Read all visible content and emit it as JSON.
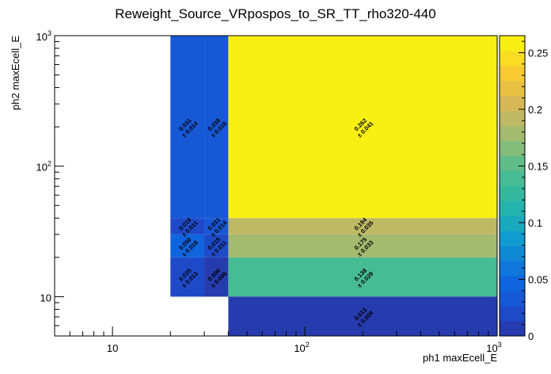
{
  "chart_data": {
    "type": "heatmap",
    "title": "Reweight_Source_VRpospos_to_SR_TT_rho320-440",
    "xlabel": "ph1 maxEcell_E",
    "ylabel": "ph2 maxEcell_E",
    "x_scale": "log",
    "y_scale": "log",
    "xlim": [
      5,
      1000
    ],
    "ylim": [
      5,
      1000
    ],
    "x_ticks": [
      {
        "value": 10,
        "base": "10",
        "exp": ""
      },
      {
        "value": 100,
        "base": "10",
        "exp": "2"
      },
      {
        "value": 1000,
        "base": "10",
        "exp": "3"
      }
    ],
    "y_ticks": [
      {
        "value": 10,
        "base": "10",
        "exp": ""
      },
      {
        "value": 100,
        "base": "10",
        "exp": "2"
      },
      {
        "value": 1000,
        "base": "10",
        "exp": "3"
      }
    ],
    "colorbar": {
      "min": 0,
      "max": 0.265,
      "ticks": [
        "0",
        "0.05",
        "0.1",
        "0.15",
        "0.2",
        "0.25"
      ],
      "tick_values": [
        0,
        0.05,
        0.1,
        0.15,
        0.2,
        0.25
      ]
    },
    "cells": [
      {
        "x0": 20,
        "x1": 30,
        "y0": 40,
        "y1": 1000,
        "value": 0.031,
        "label": "0.031",
        "err": "± 0.014"
      },
      {
        "x0": 30,
        "x1": 40,
        "y0": 40,
        "y1": 1000,
        "value": 0.038,
        "label": "0.038",
        "err": "± 0.015"
      },
      {
        "x0": 40,
        "x1": 1000,
        "y0": 40,
        "y1": 1000,
        "value": 0.262,
        "label": "0.262",
        "err": "± 0.041"
      },
      {
        "x0": 20,
        "x1": 30,
        "y0": 30,
        "y1": 40,
        "value": 0.019,
        "label": "0.019",
        "err": "± 0.011"
      },
      {
        "x0": 30,
        "x1": 40,
        "y0": 30,
        "y1": 40,
        "value": 0.031,
        "label": "0.031",
        "err": "± 0.014"
      },
      {
        "x0": 40,
        "x1": 1000,
        "y0": 30,
        "y1": 40,
        "value": 0.194,
        "label": "0.194",
        "err": "± 0.035"
      },
      {
        "x0": 20,
        "x1": 30,
        "y0": 20,
        "y1": 30,
        "value": 0.05,
        "label": "0.050",
        "err": "± 0.018"
      },
      {
        "x0": 30,
        "x1": 40,
        "y0": 20,
        "y1": 30,
        "value": 0.019,
        "label": "0.019",
        "err": "± 0.011"
      },
      {
        "x0": 40,
        "x1": 1000,
        "y0": 20,
        "y1": 30,
        "value": 0.175,
        "label": "0.175",
        "err": "± 0.033"
      },
      {
        "x0": 20,
        "x1": 30,
        "y0": 10,
        "y1": 20,
        "value": 0.025,
        "label": "0.025",
        "err": "± 0.013"
      },
      {
        "x0": 30,
        "x1": 40,
        "y0": 10,
        "y1": 20,
        "value": 0.006,
        "label": "0.006",
        "err": "± 0.006"
      },
      {
        "x0": 40,
        "x1": 1000,
        "y0": 10,
        "y1": 20,
        "value": 0.138,
        "label": "0.138",
        "err": "± 0.029"
      },
      {
        "x0": 40,
        "x1": 1000,
        "y0": 5,
        "y1": 10,
        "value": 0.013,
        "label": "0.013",
        "err": "± 0.009"
      }
    ]
  }
}
